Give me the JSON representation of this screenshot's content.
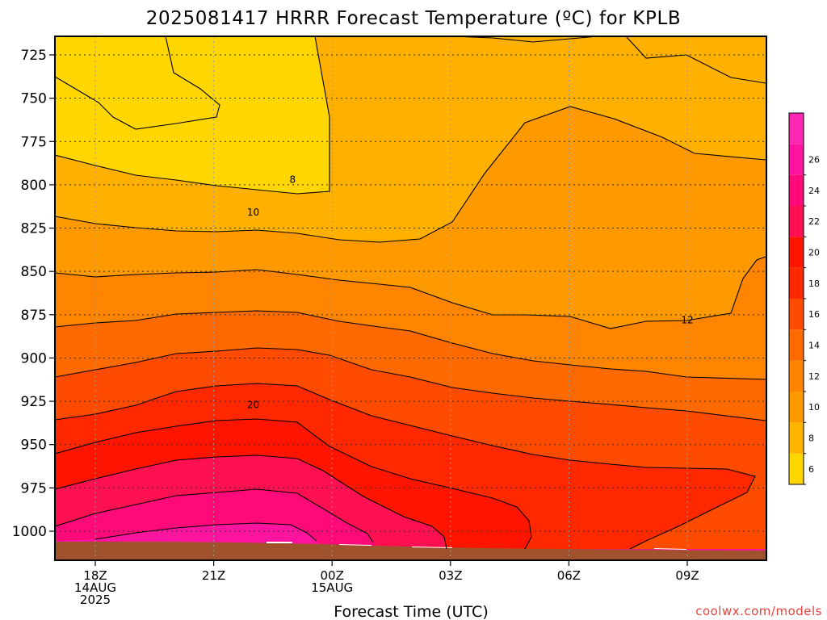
{
  "chart_data": {
    "type": "heatmap",
    "title": "2025081417 HRRR Forecast Temperature (ºC) for KPLB",
    "xlabel": "Forecast Time (UTC)",
    "ylabel": "",
    "credit": "coolwx.com/models",
    "y_ticks": [
      {
        "label": "725",
        "value": 725
      },
      {
        "label": "750",
        "value": 750
      },
      {
        "label": "775",
        "value": 775
      },
      {
        "label": "800",
        "value": 800
      },
      {
        "label": "825",
        "value": 825
      },
      {
        "label": "850",
        "value": 850
      },
      {
        "label": "875",
        "value": 875
      },
      {
        "label": "900",
        "value": 900
      },
      {
        "label": "925",
        "value": 925
      },
      {
        "label": "950",
        "value": 950
      },
      {
        "label": "975",
        "value": 975
      },
      {
        "label": "1000",
        "value": 1000
      }
    ],
    "x_ticks": [
      {
        "lines": [
          "18Z",
          "14AUG",
          "2025"
        ],
        "hour": 0
      },
      {
        "lines": [
          "21Z"
        ],
        "hour": 3
      },
      {
        "lines": [
          "00Z",
          "15AUG"
        ],
        "hour": 6
      },
      {
        "lines": [
          "03Z"
        ],
        "hour": 9
      },
      {
        "lines": [
          "06Z"
        ],
        "hour": 12
      },
      {
        "lines": [
          "09Z"
        ],
        "hour": 15
      }
    ],
    "contour_labels": [
      {
        "text": "8",
        "hour": 5.0,
        "level": 797
      },
      {
        "text": "10",
        "hour": 4.0,
        "level": 816
      },
      {
        "text": "12",
        "hour": 15.0,
        "level": 878
      },
      {
        "text": "20",
        "hour": 4.0,
        "level": 927
      }
    ],
    "colorbar": {
      "levels": [
        {
          "value": 6,
          "color": "#ffd700",
          "label": "6"
        },
        {
          "value": 8,
          "color": "#ffb400",
          "label": "8"
        },
        {
          "value": 10,
          "color": "#ff9900",
          "label": "10"
        },
        {
          "value": 12,
          "color": "#ff8400",
          "label": "12"
        },
        {
          "value": 14,
          "color": "#ff6a00",
          "label": "14"
        },
        {
          "value": 16,
          "color": "#ff4b00",
          "label": "16"
        },
        {
          "value": 18,
          "color": "#ff2800",
          "label": "18"
        },
        {
          "value": 20,
          "color": "#ff1400",
          "label": "20"
        },
        {
          "value": 22,
          "color": "#ff1050",
          "label": "22"
        },
        {
          "value": 24,
          "color": "#ff0a78",
          "label": "24"
        },
        {
          "value": 26,
          "color": "#ff14a0",
          "label": "26"
        },
        {
          "value": 28,
          "color": "#ff28b4",
          "label": ""
        }
      ]
    },
    "colors": {
      "band_lt8": "#ffd600",
      "band_8_10": "#ffb000",
      "band_10_12": "#ff9900",
      "band_12_14": "#ff8400",
      "band_14_16": "#ff6a00",
      "band_16_18": "#ff4b00",
      "band_18_20": "#ff2800",
      "band_20_22": "#ff1400",
      "band_22_24": "#ff1050",
      "band_24_26": "#ff0a78",
      "band_gt26": "#ff14a0",
      "ground": "#a0522d",
      "credit": "#e8423c"
    }
  }
}
